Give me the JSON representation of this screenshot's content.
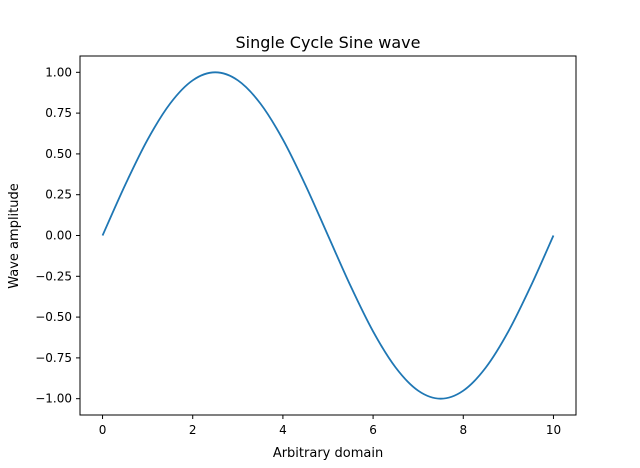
{
  "chart_data": {
    "type": "line",
    "title": "Single Cycle Sine wave",
    "xlabel": "Arbitrary domain",
    "ylabel": "Wave amplitude",
    "xlim": [
      -0.5,
      10.5
    ],
    "ylim": [
      -1.1,
      1.1
    ],
    "xticks": [
      0,
      2,
      4,
      6,
      8,
      10
    ],
    "xtick_labels": [
      "0",
      "2",
      "4",
      "6",
      "8",
      "10"
    ],
    "yticks": [
      1.0,
      0.75,
      0.5,
      0.25,
      0.0,
      -0.25,
      -0.5,
      -0.75,
      -1.0
    ],
    "ytick_labels": [
      "1.00",
      "0.75",
      "0.50",
      "0.25",
      "0.00",
      "−0.25",
      "−0.50",
      "−0.75",
      "−1.00"
    ],
    "grid": false,
    "series": [
      {
        "color": "#1f77b4",
        "x": [
          0,
          0.5,
          1,
          1.5,
          2,
          2.5,
          3,
          3.5,
          4,
          4.5,
          5,
          5.5,
          6,
          6.5,
          7,
          7.5,
          8,
          8.5,
          9,
          9.5,
          10
        ],
        "y": [
          0.0,
          0.309,
          0.588,
          0.809,
          0.951,
          1.0,
          0.951,
          0.809,
          0.588,
          0.309,
          0.0,
          -0.309,
          -0.588,
          -0.809,
          -0.951,
          -1.0,
          -0.951,
          -0.809,
          -0.588,
          -0.309,
          0.0
        ]
      }
    ]
  }
}
